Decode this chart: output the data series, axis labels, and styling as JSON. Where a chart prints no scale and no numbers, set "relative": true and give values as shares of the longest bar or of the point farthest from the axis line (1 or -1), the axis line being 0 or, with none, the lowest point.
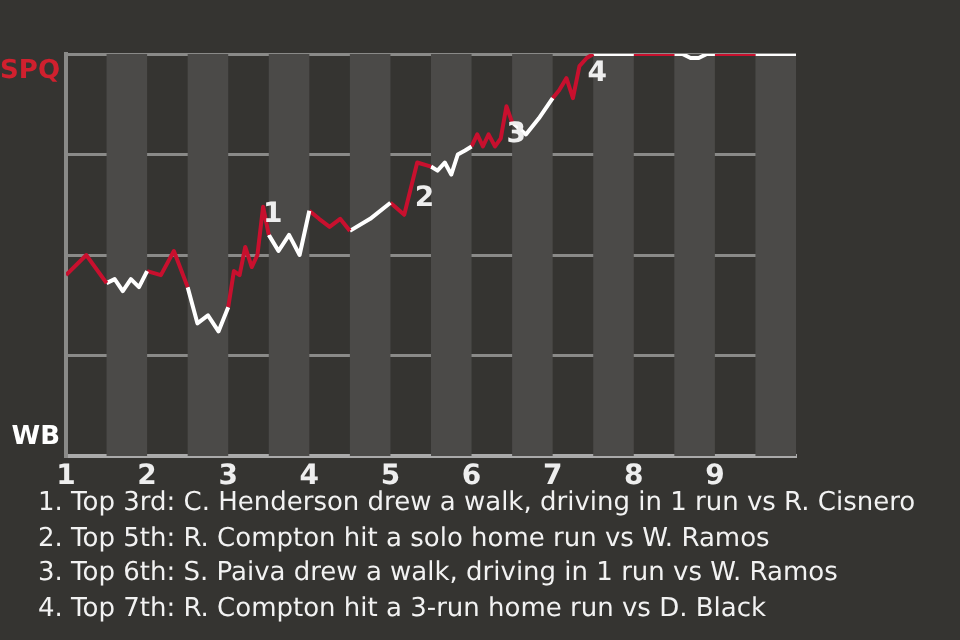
{
  "chart_data": {
    "type": "line",
    "relative": true,
    "grid": "y",
    "legend": false,
    "marker": "none",
    "line_style": "solid",
    "xlim": [
      1,
      10
    ],
    "xticks": [
      1,
      2,
      3,
      4,
      5,
      6,
      7,
      8,
      9
    ],
    "series": [
      {
        "color": "#c8102e",
        "x": [
          1,
          1.25,
          1.5
        ],
        "values": [
          0.45,
          0.5,
          0.43
        ]
      },
      {
        "color": "#ffffff",
        "x": [
          1.5,
          1.6,
          1.7,
          1.8,
          1.9,
          2
        ],
        "values": [
          0.43,
          0.44,
          0.41,
          0.44,
          0.42,
          0.46
        ]
      },
      {
        "color": "#c8102e",
        "x": [
          2,
          2.17,
          2.33,
          2.5
        ],
        "values": [
          0.46,
          0.45,
          0.51,
          0.42
        ]
      },
      {
        "color": "#ffffff",
        "x": [
          2.5,
          2.62,
          2.75,
          2.88,
          3
        ],
        "values": [
          0.42,
          0.33,
          0.35,
          0.31,
          0.37
        ]
      },
      {
        "color": "#c8102e",
        "x": [
          3,
          3.07,
          3.14,
          3.21,
          3.29,
          3.36,
          3.43,
          3.5
        ],
        "values": [
          0.37,
          0.46,
          0.45,
          0.52,
          0.47,
          0.5,
          0.62,
          0.55
        ]
      },
      {
        "color": "#ffffff",
        "x": [
          3.5,
          3.62,
          3.75,
          3.88,
          4
        ],
        "values": [
          0.55,
          0.51,
          0.55,
          0.5,
          0.61
        ]
      },
      {
        "color": "#c8102e",
        "x": [
          4,
          4.12,
          4.25,
          4.38,
          4.5
        ],
        "values": [
          0.61,
          0.59,
          0.57,
          0.59,
          0.56
        ]
      },
      {
        "color": "#ffffff",
        "x": [
          4.5,
          4.75,
          5
        ],
        "values": [
          0.56,
          0.59,
          0.63
        ]
      },
      {
        "color": "#c8102e",
        "x": [
          5,
          5.17,
          5.33,
          5.5
        ],
        "values": [
          0.63,
          0.6,
          0.73,
          0.72
        ]
      },
      {
        "color": "#ffffff",
        "x": [
          5.5,
          5.58,
          5.67,
          5.75,
          5.83,
          5.92,
          6
        ],
        "values": [
          0.72,
          0.71,
          0.73,
          0.7,
          0.75,
          0.76,
          0.77
        ]
      },
      {
        "color": "#c8102e",
        "x": [
          6,
          6.07,
          6.14,
          6.21,
          6.29,
          6.36,
          6.43,
          6.5
        ],
        "values": [
          0.77,
          0.8,
          0.77,
          0.8,
          0.77,
          0.79,
          0.87,
          0.83
        ]
      },
      {
        "color": "#ffffff",
        "x": [
          6.5,
          6.67,
          6.83,
          7
        ],
        "values": [
          0.83,
          0.8,
          0.84,
          0.89
        ]
      },
      {
        "color": "#c8102e",
        "x": [
          7,
          7.08,
          7.17,
          7.25,
          7.33,
          7.42,
          7.5
        ],
        "values": [
          0.89,
          0.91,
          0.94,
          0.89,
          0.97,
          0.99,
          1
        ]
      },
      {
        "color": "#ffffff",
        "x": [
          7.5,
          8
        ],
        "values": [
          1,
          1
        ]
      },
      {
        "color": "#c8102e",
        "x": [
          8,
          8.5
        ],
        "values": [
          1,
          1
        ]
      },
      {
        "color": "#ffffff",
        "x": [
          8.5,
          8.6,
          8.7,
          8.8,
          8.9,
          9
        ],
        "values": [
          1,
          1,
          0.99,
          0.99,
          1,
          1
        ]
      },
      {
        "color": "#c8102e",
        "x": [
          9,
          9.5
        ],
        "values": [
          1,
          1
        ]
      },
      {
        "color": "#ffffff",
        "x": [
          9.5,
          10
        ],
        "values": [
          1,
          1
        ]
      }
    ],
    "bands": [
      {
        "axis": "x",
        "from": 1.5,
        "to": 2,
        "color": "#4b4a48"
      },
      {
        "axis": "x",
        "from": 2.5,
        "to": 3,
        "color": "#4b4a48"
      },
      {
        "axis": "x",
        "from": 3.5,
        "to": 4,
        "color": "#4b4a48"
      },
      {
        "axis": "x",
        "from": 4.5,
        "to": 5,
        "color": "#4b4a48"
      },
      {
        "axis": "x",
        "from": 5.5,
        "to": 6,
        "color": "#4b4a48"
      },
      {
        "axis": "x",
        "from": 6.5,
        "to": 7,
        "color": "#4b4a48"
      },
      {
        "axis": "x",
        "from": 7.5,
        "to": 8,
        "color": "#4b4a48"
      },
      {
        "axis": "x",
        "from": 8.5,
        "to": 9,
        "color": "#4b4a48"
      },
      {
        "axis": "x",
        "from": 9.5,
        "to": 10,
        "color": "#4b4a48"
      }
    ],
    "annotations": [
      "SPQ",
      "WB",
      {
        "text": "1",
        "x": 3.55,
        "y": 0.6
      },
      {
        "text": "2",
        "x": 5.42,
        "y": 0.64
      },
      {
        "text": "3",
        "x": 6.55,
        "y": 0.8
      },
      {
        "text": "4",
        "x": 7.55,
        "y": 0.95
      },
      "1. Top 3rd: C. Henderson drew a walk, driving in 1 run vs R. Cisnero",
      "2. Top 5th: R. Compton hit a solo home run vs W. Ramos",
      "3. Top 6th: S. Paiva drew a walk, driving in 1 run vs W. Ramos",
      "4. Top 7th: R. Compton hit a 3-run home run vs D. Black"
    ]
  }
}
